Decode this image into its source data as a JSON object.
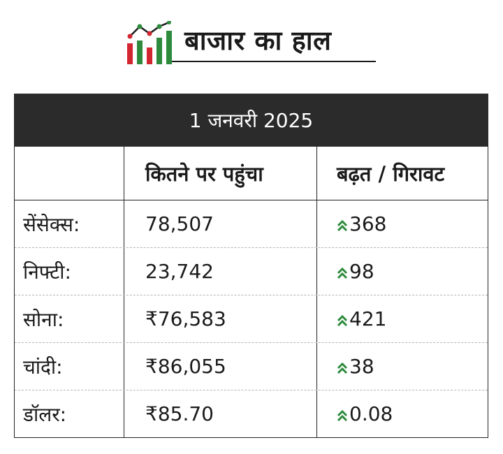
{
  "header": {
    "title": "बाजार का हाल",
    "logo_icon": "market-chart-icon",
    "colors": {
      "green": "#2e8b3d",
      "red": "#d22630"
    }
  },
  "table": {
    "date_banner": "1 जनवरी 2025",
    "columns": [
      "",
      "कितने पर पहुंचा",
      "बढ़त / गिरावट"
    ],
    "rows": [
      {
        "name": "सेंसेक्स:",
        "value": "78,507",
        "change": "368",
        "direction": "up"
      },
      {
        "name": "निफ्टी:",
        "value": "23,742",
        "change": "98",
        "direction": "up"
      },
      {
        "name": "सोना:",
        "value": "₹76,583",
        "change": "421",
        "direction": "up"
      },
      {
        "name": "चांदी:",
        "value": "₹86,055",
        "change": "38",
        "direction": "up"
      },
      {
        "name": "डॉलर:",
        "value": "₹85.70",
        "change": "0.08",
        "direction": "up"
      }
    ],
    "change_icon": "double-chevron-up-icon",
    "banner_color": "#2b2b2b",
    "up_color": "#2e8b3d"
  }
}
